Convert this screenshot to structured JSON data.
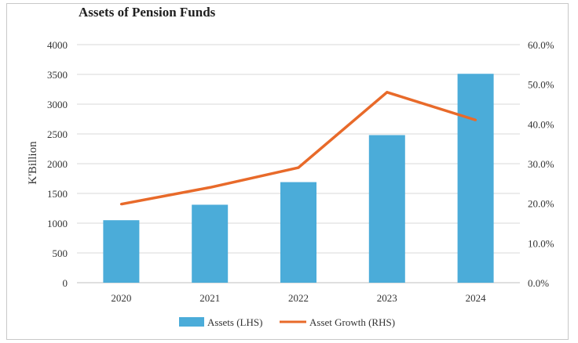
{
  "chart_data": {
    "type": "bar",
    "title": "Assets of Pension Funds",
    "categories": [
      "2020",
      "2021",
      "2022",
      "2023",
      "2024"
    ],
    "ylabel_left": "K'Billion",
    "ylim_left": [
      0,
      4000
    ],
    "yticks_left": [
      "0",
      "500",
      "1000",
      "1500",
      "2000",
      "2500",
      "3000",
      "3500",
      "4000"
    ],
    "ylim_right": [
      0,
      60
    ],
    "yticks_right": [
      "0.0%",
      "10.0%",
      "20.0%",
      "30.0%",
      "40.0%",
      "50.0%",
      "60.0%"
    ],
    "grid": true,
    "legend_position": "bottom",
    "series": [
      {
        "name": "Assets (LHS)",
        "type": "bar",
        "axis": "left",
        "color": "#4bacd9",
        "values": [
          1050,
          1310,
          1690,
          2480,
          3510
        ]
      },
      {
        "name": "Asset Growth (RHS)",
        "type": "line",
        "axis": "right",
        "color": "#e86a2a",
        "values": [
          19.8,
          24.0,
          29.0,
          48.0,
          41.0
        ]
      }
    ]
  }
}
